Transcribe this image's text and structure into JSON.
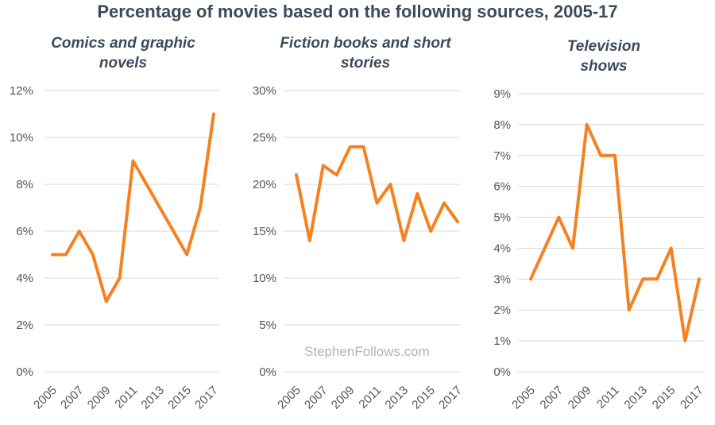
{
  "title": "Percentage of movies based on the following sources, 2005-17",
  "watermark": "StephenFollows.com",
  "colors": {
    "line": "#f58220",
    "title": "#3d4a5c",
    "grid": "#d9d9d9"
  },
  "chart_data": [
    {
      "type": "line",
      "title": "Comics and graphic novels",
      "x": [
        2005,
        2006,
        2007,
        2008,
        2009,
        2010,
        2011,
        2012,
        2013,
        2014,
        2015,
        2016,
        2017
      ],
      "values": [
        5,
        5,
        6,
        5,
        3,
        4,
        9,
        8,
        7,
        6,
        5,
        7,
        11
      ],
      "ylim": [
        0,
        12
      ],
      "yticks": [
        0,
        2,
        4,
        6,
        8,
        10,
        12
      ],
      "ytick_labels": [
        "0%",
        "2%",
        "4%",
        "6%",
        "8%",
        "10%",
        "12%"
      ],
      "xtick_labels": [
        "2005",
        "2007",
        "2009",
        "2011",
        "2013",
        "2015",
        "2017"
      ]
    },
    {
      "type": "line",
      "title": "Fiction books and short stories",
      "x": [
        2005,
        2006,
        2007,
        2008,
        2009,
        2010,
        2011,
        2012,
        2013,
        2014,
        2015,
        2016,
        2017
      ],
      "values": [
        21,
        14,
        22,
        21,
        24,
        24,
        18,
        20,
        14,
        19,
        15,
        18,
        16
      ],
      "ylim": [
        0,
        30
      ],
      "yticks": [
        0,
        5,
        10,
        15,
        20,
        25,
        30
      ],
      "ytick_labels": [
        "0%",
        "5%",
        "10%",
        "15%",
        "20%",
        "25%",
        "30%"
      ],
      "xtick_labels": [
        "2005",
        "2007",
        "2009",
        "2011",
        "2013",
        "2015",
        "2017"
      ]
    },
    {
      "type": "line",
      "title": "Television shows",
      "x": [
        2005,
        2006,
        2007,
        2008,
        2009,
        2010,
        2011,
        2012,
        2013,
        2014,
        2015,
        2016,
        2017
      ],
      "values": [
        3,
        4,
        5,
        4,
        8,
        7,
        7,
        2,
        3,
        3,
        4,
        1,
        3
      ],
      "ylim": [
        0,
        9
      ],
      "yticks": [
        0,
        1,
        2,
        3,
        4,
        5,
        6,
        7,
        8,
        9
      ],
      "ytick_labels": [
        "0%",
        "1%",
        "2%",
        "3%",
        "4%",
        "5%",
        "6%",
        "7%",
        "8%",
        "9%"
      ],
      "xtick_labels": [
        "2005",
        "2007",
        "2009",
        "2011",
        "2013",
        "2015",
        "2017"
      ]
    }
  ]
}
